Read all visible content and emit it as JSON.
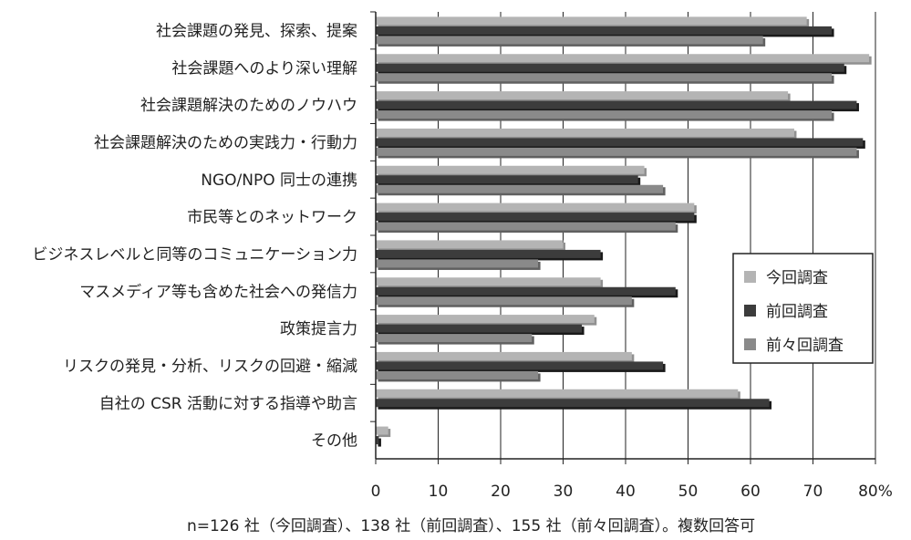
{
  "chart_data": {
    "type": "bar",
    "orientation": "horizontal",
    "categories": [
      "社会課題の発見、探索、提案",
      "社会課題へのより深い理解",
      "社会課題解決のためのノウハウ",
      "社会課題解決のための実践力・行動力",
      "NGO/NPO 同士の連携",
      "市民等とのネットワーク",
      "ビジネスレベルと同等のコミュニケーション力",
      "マスメディア等も含めた社会への発信力",
      "政策提言力",
      "リスクの発見・分析、リスクの回避・縮減",
      "自社の CSR 活動に対する指導や助言",
      "その他"
    ],
    "series": [
      {
        "name": "今回調査",
        "color": "#b4b4b4",
        "values": [
          69,
          79,
          66,
          67,
          43,
          51,
          30,
          36,
          35,
          41,
          58,
          2
        ]
      },
      {
        "name": "前回調査",
        "color": "#3c3c3c",
        "values": [
          73,
          75,
          77,
          78,
          42,
          51,
          36,
          48,
          33,
          46,
          63,
          0.5
        ]
      },
      {
        "name": "前々回調査",
        "color": "#8a8a8a",
        "values": [
          62,
          73,
          73,
          77,
          46,
          48,
          26,
          41,
          25,
          26,
          null,
          null
        ]
      }
    ],
    "xlim": [
      0,
      80
    ],
    "xticks": [
      "0",
      "10",
      "20",
      "30",
      "40",
      "50",
      "60",
      "70",
      "80%"
    ],
    "grid": "vertical",
    "legend_position": "right",
    "note": "n=126 社（今回調査）、138 社（前回調査）、155 社（前々回調査）。複数回答可"
  }
}
